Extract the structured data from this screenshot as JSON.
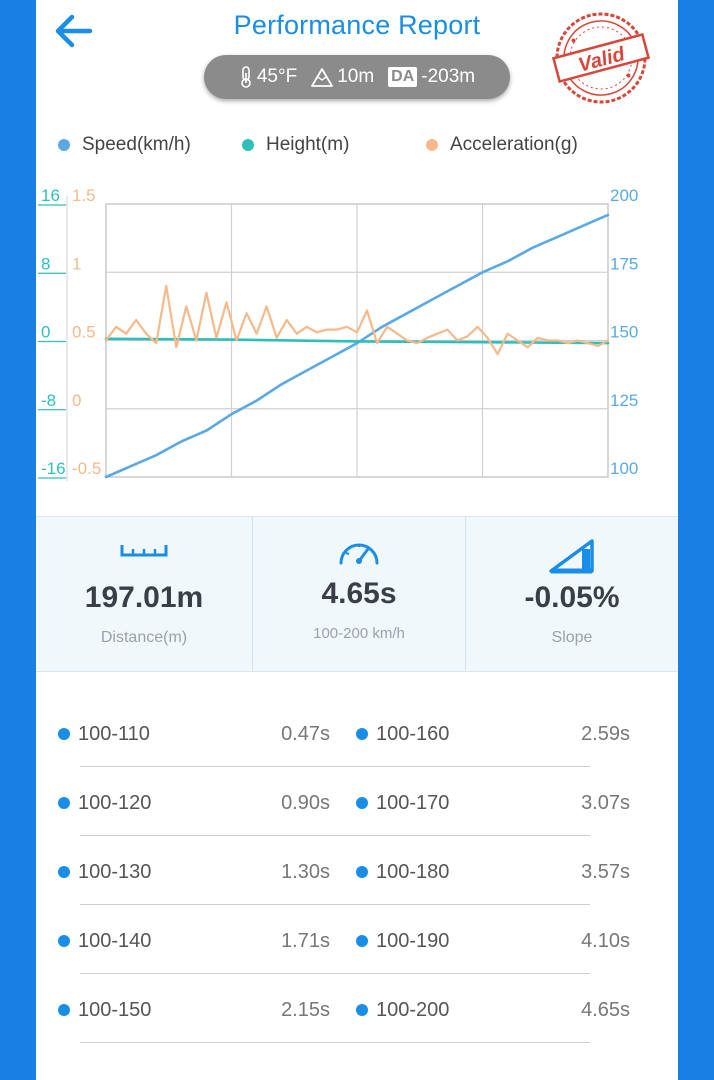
{
  "header": {
    "title": "Performance Report",
    "back_icon": "arrow-left-icon",
    "temperature": "45°F",
    "altitude": "10m",
    "da_label": "DA",
    "density_altitude": "-203m",
    "stamp_text": "Valid"
  },
  "legend": [
    {
      "label": "Speed(km/h)",
      "color": "#5aa9e6"
    },
    {
      "label": "Height(m)",
      "color": "#2ec0b8"
    },
    {
      "label": "Acceleration(g)",
      "color": "#f5b98a"
    }
  ],
  "chart_data": {
    "type": "line",
    "x_gridlines": 4,
    "axes": {
      "height": {
        "ticks": [
          "16",
          "8",
          "0",
          "-8",
          "-16"
        ],
        "range": [
          -16,
          16
        ],
        "color": "#2ec0b8"
      },
      "acceleration": {
        "ticks": [
          "1.5",
          "1",
          "0.5",
          "0",
          "-0.5"
        ],
        "range": [
          -0.5,
          1.5
        ],
        "color": "#f5b98a"
      },
      "speed": {
        "ticks": [
          "200",
          "175",
          "150",
          "125",
          "100"
        ],
        "range": [
          100,
          200
        ],
        "color": "#5aa9e6"
      }
    },
    "series": [
      {
        "name": "Speed(km/h)",
        "axis": "speed",
        "x": [
          0,
          0.05,
          0.1,
          0.15,
          0.2,
          0.25,
          0.3,
          0.35,
          0.4,
          0.45,
          0.5,
          0.55,
          0.6,
          0.65,
          0.7,
          0.75,
          0.8,
          0.85,
          0.9,
          0.95,
          1
        ],
        "values": [
          100,
          104,
          108,
          113,
          117,
          123,
          128,
          134,
          139,
          144,
          149,
          155,
          160,
          165,
          170,
          175,
          179,
          184,
          188,
          192,
          196
        ]
      },
      {
        "name": "Height(m)",
        "axis": "height",
        "x": [
          0,
          0.25,
          0.5,
          0.75,
          1
        ],
        "values": [
          0.2,
          0.1,
          -0.1,
          -0.2,
          -0.3
        ]
      },
      {
        "name": "Acceleration(g)",
        "axis": "acceleration",
        "x": [
          0,
          0.02,
          0.04,
          0.06,
          0.08,
          0.1,
          0.12,
          0.14,
          0.16,
          0.18,
          0.2,
          0.22,
          0.24,
          0.26,
          0.28,
          0.3,
          0.32,
          0.34,
          0.36,
          0.38,
          0.4,
          0.42,
          0.44,
          0.46,
          0.48,
          0.5,
          0.52,
          0.54,
          0.56,
          0.58,
          0.6,
          0.62,
          0.64,
          0.66,
          0.68,
          0.7,
          0.72,
          0.74,
          0.76,
          0.78,
          0.8,
          0.82,
          0.84,
          0.86,
          0.88,
          0.9,
          0.92,
          0.94,
          0.96,
          0.98,
          1
        ],
        "values": [
          0.5,
          0.6,
          0.55,
          0.65,
          0.55,
          0.48,
          0.9,
          0.45,
          0.75,
          0.5,
          0.85,
          0.52,
          0.78,
          0.5,
          0.7,
          0.55,
          0.75,
          0.52,
          0.65,
          0.55,
          0.6,
          0.56,
          0.58,
          0.58,
          0.6,
          0.56,
          0.72,
          0.48,
          0.6,
          0.55,
          0.5,
          0.48,
          0.52,
          0.55,
          0.58,
          0.5,
          0.53,
          0.6,
          0.52,
          0.4,
          0.55,
          0.5,
          0.45,
          0.52,
          0.5,
          0.5,
          0.48,
          0.5,
          0.48,
          0.46,
          0.5
        ]
      }
    ]
  },
  "stats": [
    {
      "icon": "ruler-icon",
      "value": "197.01m",
      "label": "Distance(m)"
    },
    {
      "icon": "speedometer-icon",
      "value": "4.65s",
      "label": "100-200 km/h"
    },
    {
      "icon": "slope-icon",
      "value": "-0.05%",
      "label": "Slope"
    }
  ],
  "splits": {
    "left": [
      {
        "range": "100-110",
        "time": "0.47s"
      },
      {
        "range": "100-120",
        "time": "0.90s"
      },
      {
        "range": "100-130",
        "time": "1.30s"
      },
      {
        "range": "100-140",
        "time": "1.71s"
      },
      {
        "range": "100-150",
        "time": "2.15s"
      }
    ],
    "right": [
      {
        "range": "100-160",
        "time": "2.59s"
      },
      {
        "range": "100-170",
        "time": "3.07s"
      },
      {
        "range": "100-180",
        "time": "3.57s"
      },
      {
        "range": "100-190",
        "time": "4.10s"
      },
      {
        "range": "100-200",
        "time": "4.65s"
      }
    ]
  },
  "colors": {
    "accent": "#1a8ee6",
    "frame": "#1a7fe3",
    "stamp": "#d9453a"
  }
}
